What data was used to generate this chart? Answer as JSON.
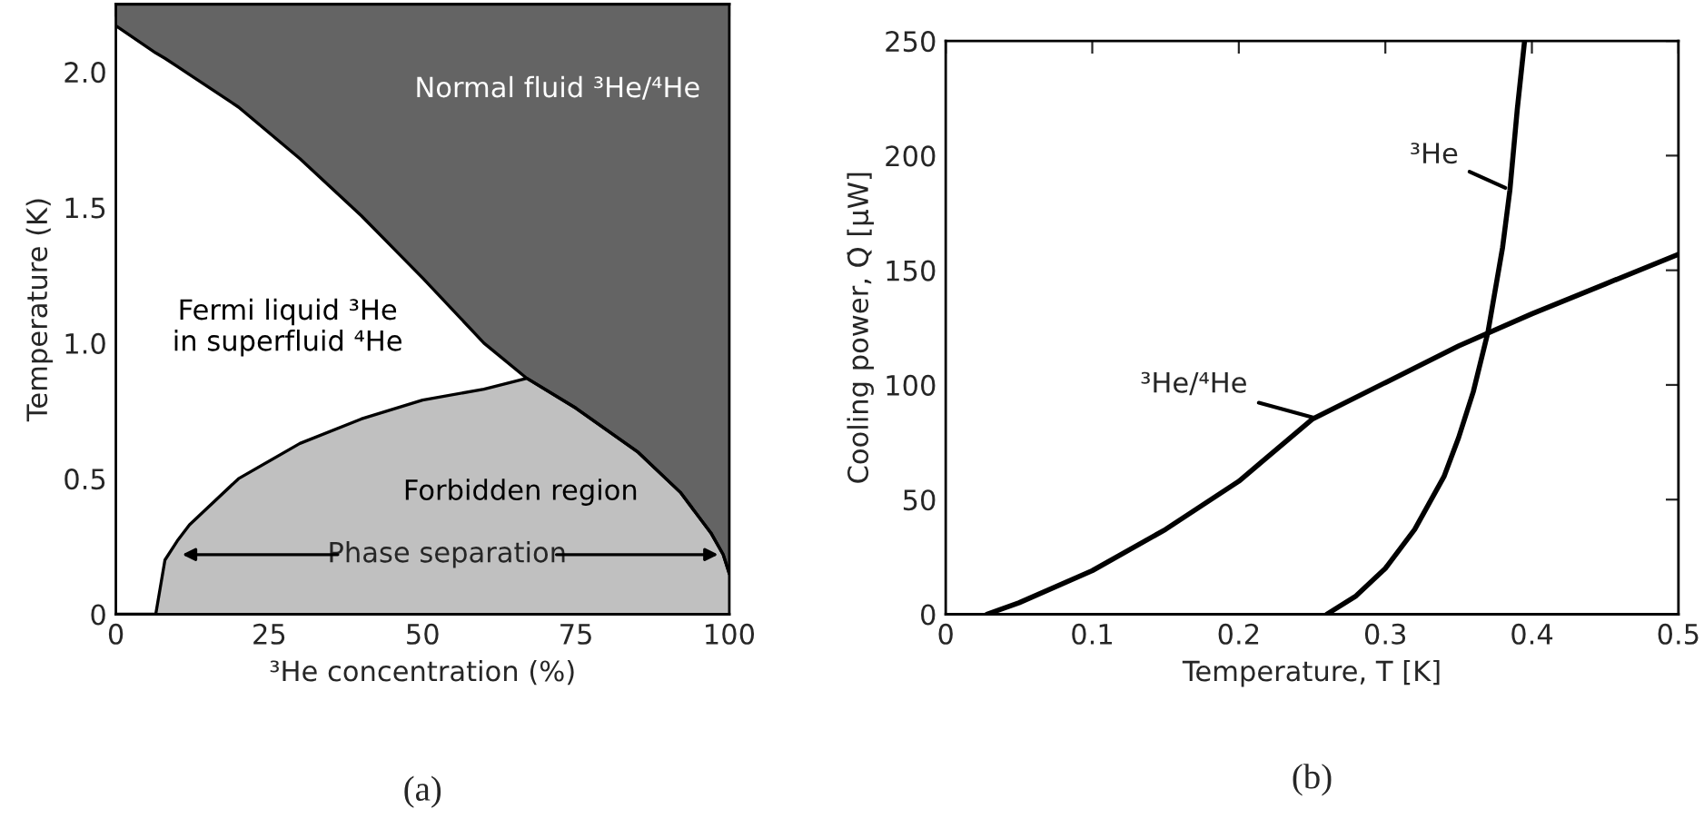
{
  "chart_data": [
    {
      "type": "area",
      "title": "(a)",
      "xlabel": "³He concentration (%)",
      "ylabel": "Temperature (K)",
      "xlim": [
        0,
        100
      ],
      "ylim": [
        0,
        2.25
      ],
      "xticks": [
        0,
        25,
        50,
        75,
        100
      ],
      "yticks": [
        0,
        {
          "value": 0.5,
          "label": "0.5"
        },
        {
          "value": 1,
          "label": "1.0"
        },
        {
          "value": 1.5,
          "label": "1.5"
        },
        {
          "value": 2,
          "label": "2.0"
        }
      ],
      "stacked": true,
      "x": [
        0,
        6.5,
        8,
        10,
        12,
        20,
        30,
        40,
        50,
        60,
        67,
        75,
        85,
        92,
        97,
        99,
        100
      ],
      "series": [
        {
          "color": "#c0c0c0",
          "values": [
            0,
            0,
            0.2,
            0.27,
            0.33,
            0.5,
            0.63,
            0.72,
            0.79,
            0.83,
            0.87,
            0.76,
            0.6,
            0.45,
            0.3,
            0.22,
            0.15
          ]
        },
        {
          "color": "#ffffff",
          "values": [
            2.17,
            2.07,
            1.85,
            1.75,
            1.66,
            1.37,
            1.05,
            0.75,
            0.45,
            0.17,
            0,
            0,
            0,
            0,
            0,
            0,
            0
          ]
        },
        {
          "color": "#646464",
          "values": [
            0.08,
            0.18,
            0.2,
            0.23,
            0.26,
            0.38,
            0.57,
            0.78,
            1.01,
            1.25,
            1.38,
            1.49,
            1.65,
            1.8,
            1.95,
            2.03,
            2.1
          ]
        }
      ],
      "annotations": [
        "Normal fluid ³He/⁴He",
        "Fermi liquid ³He\nin superfluid ⁴He",
        "Forbidden region",
        {
          "text": "Phase separation",
          "x": 99,
          "y": 0.22
        }
      ]
    },
    {
      "type": "line",
      "title": "(b)",
      "xlabel": "Temperature, T [K]",
      "ylabel": "Cooling power, Q̇ [μW]",
      "xlim": [
        0,
        0.5
      ],
      "ylim": [
        0,
        250
      ],
      "xticks": [
        0,
        0.1,
        0.2,
        0.3,
        0.4,
        0.5
      ],
      "yticks": [
        0,
        50,
        100,
        150,
        200,
        250
      ],
      "series": [
        {
          "color": "#000000",
          "x": [
            0.028,
            0.05,
            0.1,
            0.15,
            0.2,
            0.25,
            0.3,
            0.35,
            0.4,
            0.45,
            0.5
          ],
          "values": [
            0,
            5,
            19,
            37,
            58,
            85,
            101,
            117,
            131,
            144,
            157
          ]
        },
        {
          "color": "#000000",
          "x": [
            0.26,
            0.28,
            0.3,
            0.32,
            0.34,
            0.35,
            0.36,
            0.37,
            0.38,
            0.385,
            0.39,
            0.395
          ],
          "values": [
            0,
            8,
            20,
            37,
            60,
            77,
            97,
            123,
            160,
            185,
            220,
            250
          ]
        }
      ],
      "annotations": [
        {
          "text": "³He/⁴He",
          "x": 0.255,
          "y": 85
        },
        {
          "text": "³He",
          "x": 0.385,
          "y": 185
        }
      ]
    }
  ]
}
